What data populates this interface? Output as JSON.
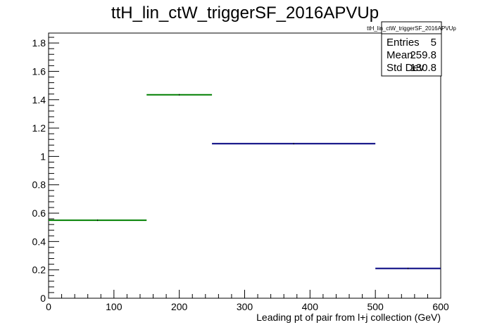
{
  "chart_data": {
    "type": "histogram",
    "title": "ttH_lin_ctW_triggerSF_2016APVUp",
    "xlabel": "Leading pt of pair from l+j collection (GeV)",
    "ylabel": "",
    "xlim": [
      0,
      600
    ],
    "ylim": [
      0,
      1.87
    ],
    "x_ticks": [
      "0",
      "100",
      "200",
      "300",
      "400",
      "500",
      "600"
    ],
    "y_ticks": [
      "0",
      "0.2",
      "0.4",
      "0.6",
      "0.8",
      "1",
      "1.2",
      "1.4",
      "1.6",
      "1.8"
    ],
    "grid": false,
    "series": [
      {
        "color": "#007f00",
        "bins": [
          {
            "x0": 0,
            "x1": 150,
            "y": 0.55
          },
          {
            "x0": 150,
            "x1": 250,
            "y": 1.435
          }
        ]
      },
      {
        "color": "#00007f",
        "bins": [
          {
            "x0": 250,
            "x1": 500,
            "y": 1.09
          },
          {
            "x0": 500,
            "x1": 600,
            "y": 0.21
          }
        ]
      }
    ],
    "stats_box": {
      "title": "ttH_lin_ctW_triggerSF_2016APVUp",
      "rows": [
        {
          "label": "Entries",
          "value": "5"
        },
        {
          "label": "Mean",
          "value": "259.8"
        },
        {
          "label": "Std Dev",
          "value": "130.8"
        }
      ]
    }
  }
}
